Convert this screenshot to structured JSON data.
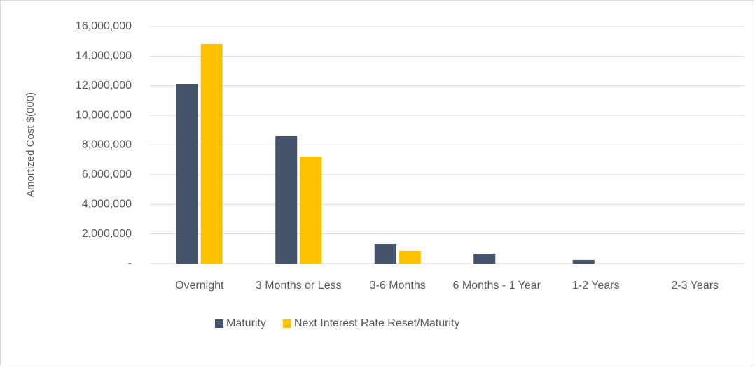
{
  "chart_data": {
    "type": "bar",
    "y_label": "Amortized Cost $(000)",
    "categories": [
      "Overnight",
      "3 Months or Less",
      "3-6 Months",
      "6 Months - 1 Year",
      "1-2 Years",
      "2-3 Years"
    ],
    "series": [
      {
        "name": "Maturity",
        "color": "#44546a",
        "values": [
          12130000,
          8590000,
          1320000,
          660000,
          240000,
          0
        ]
      },
      {
        "name": "Next Interest Rate Reset/Maturity",
        "color": "#ffc000",
        "values": [
          14820000,
          7220000,
          850000,
          0,
          0,
          0
        ]
      }
    ],
    "ylim": [
      0,
      16000000
    ],
    "yticks": [
      {
        "value": 0,
        "label": "-"
      },
      {
        "value": 2000000,
        "label": "2,000,000"
      },
      {
        "value": 4000000,
        "label": "4,000,000"
      },
      {
        "value": 6000000,
        "label": "6,000,000"
      },
      {
        "value": 8000000,
        "label": "8,000,000"
      },
      {
        "value": 10000000,
        "label": "10,000,000"
      },
      {
        "value": 12000000,
        "label": "12,000,000"
      },
      {
        "value": 14000000,
        "label": "14,000,000"
      },
      {
        "value": 16000000,
        "label": "16,000,000"
      }
    ],
    "grid": true,
    "legend": "bottom"
  }
}
